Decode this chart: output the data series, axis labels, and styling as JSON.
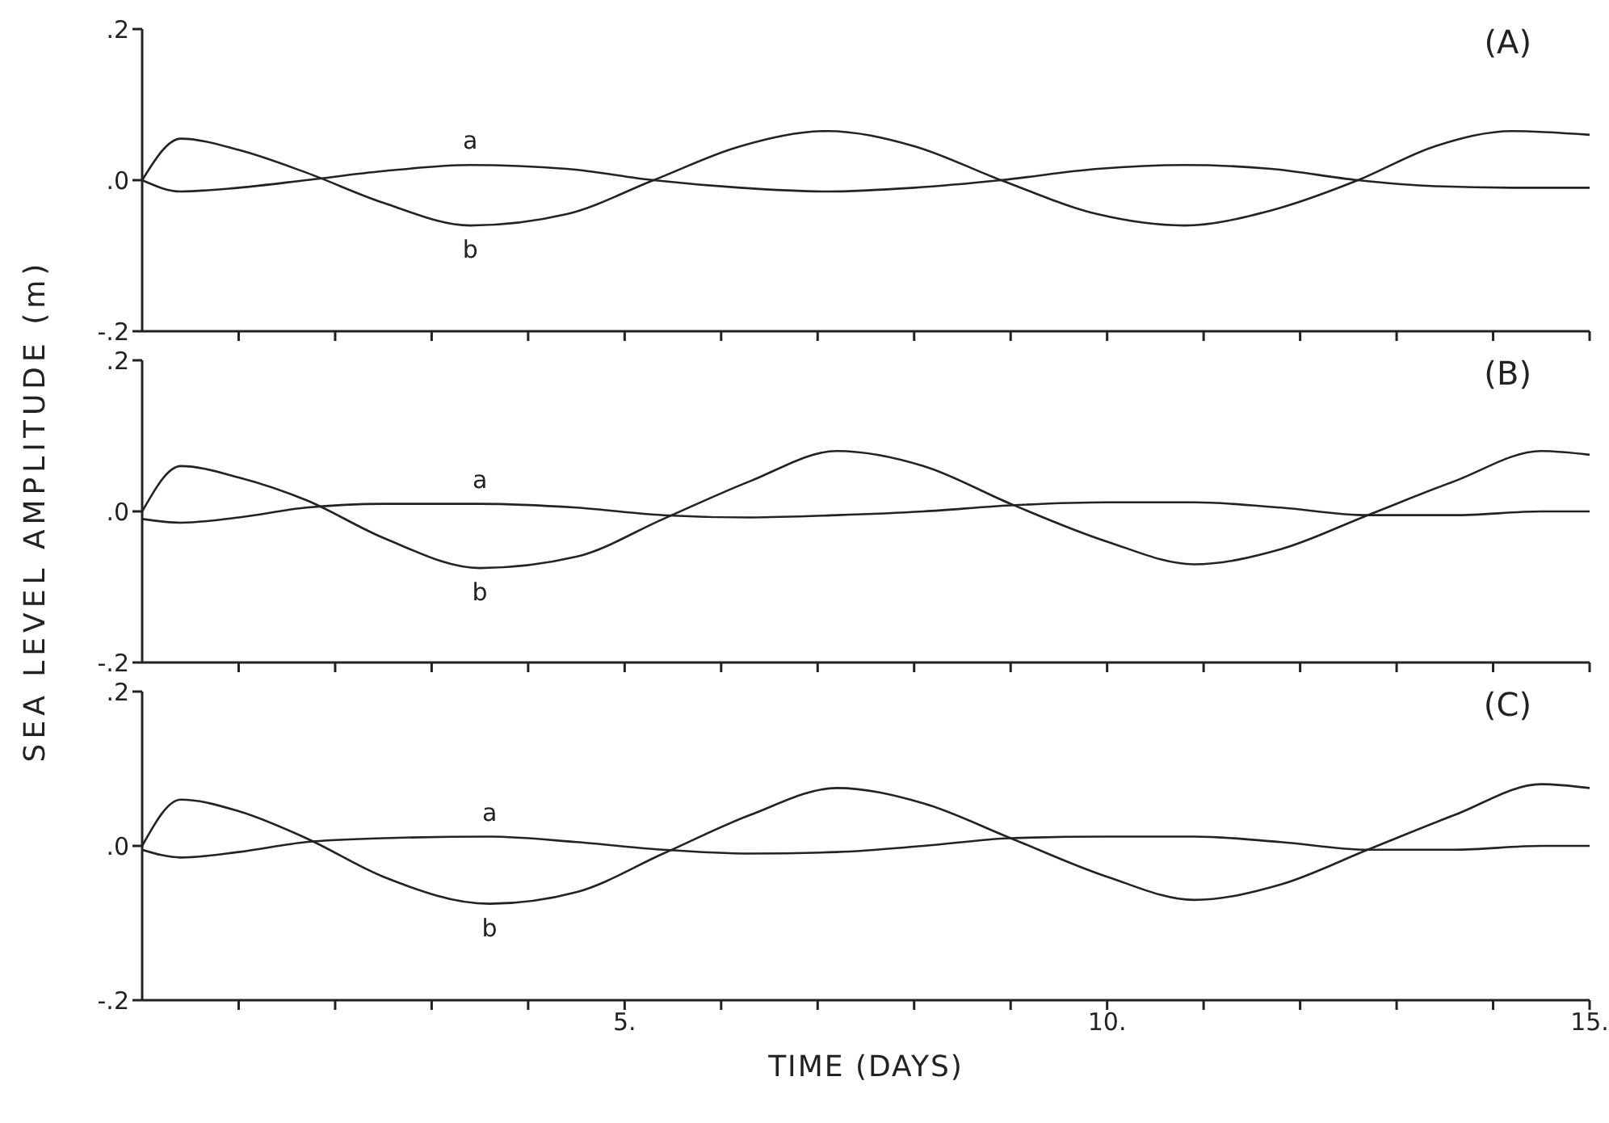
{
  "chart_data": [
    {
      "type": "line",
      "title": "(A)",
      "marker": "none",
      "tick_labels": "y",
      "xticks": [
        {
          "value": 1,
          "label": null
        },
        {
          "value": 2,
          "label": null
        },
        {
          "value": 3,
          "label": null
        },
        {
          "value": 4,
          "label": null
        },
        {
          "value": 5,
          "label": null
        },
        {
          "value": 6,
          "label": null
        },
        {
          "value": 7,
          "label": null
        },
        {
          "value": 8,
          "label": null
        },
        {
          "value": 9,
          "label": null
        },
        {
          "value": 10,
          "label": null
        },
        {
          "value": 11,
          "label": null
        },
        {
          "value": 12,
          "label": null
        },
        {
          "value": 13,
          "label": null
        },
        {
          "value": 14,
          "label": null
        },
        {
          "value": 15,
          "label": null
        }
      ],
      "x": [
        0,
        0.4,
        1,
        1.7,
        2.5,
        3.4,
        4.4,
        5.3,
        6.2,
        7.1,
        8,
        8.9,
        9.9,
        10.8,
        11.7,
        12.6,
        13.4,
        14.2,
        15
      ],
      "series": [
        {
          "name": "a",
          "color": "#222222",
          "values": [
            0,
            -0.015,
            -0.01,
            0,
            0.012,
            0.02,
            0.015,
            0,
            -0.01,
            -0.015,
            -0.01,
            0,
            0.015,
            0.02,
            0.015,
            0,
            -0.008,
            -0.01,
            -0.01
          ]
        },
        {
          "name": "b",
          "color": "#222222",
          "values": [
            0,
            0.055,
            0.04,
            0.01,
            -0.03,
            -0.06,
            -0.045,
            0,
            0.045,
            0.065,
            0.045,
            0,
            -0.045,
            -0.06,
            -0.04,
            0,
            0.045,
            0.065,
            0.06
          ]
        }
      ],
      "xlim": [
        0,
        15
      ],
      "ylim": [
        -0.2,
        0.2
      ],
      "yticks": [
        {
          "value": -0.2,
          "label": "-.2"
        },
        {
          "value": 0,
          "label": ".0"
        },
        {
          "value": 0.2,
          "label": ".2"
        }
      ]
    },
    {
      "type": "line",
      "title": "(B)",
      "ylabel": "SEA LEVEL AMPLITUDE (m)",
      "marker": "none",
      "tick_labels": "y",
      "xticks": [
        {
          "value": 1,
          "label": null
        },
        {
          "value": 2,
          "label": null
        },
        {
          "value": 3,
          "label": null
        },
        {
          "value": 4,
          "label": null
        },
        {
          "value": 5,
          "label": null
        },
        {
          "value": 6,
          "label": null
        },
        {
          "value": 7,
          "label": null
        },
        {
          "value": 8,
          "label": null
        },
        {
          "value": 9,
          "label": null
        },
        {
          "value": 10,
          "label": null
        },
        {
          "value": 11,
          "label": null
        },
        {
          "value": 12,
          "label": null
        },
        {
          "value": 13,
          "label": null
        },
        {
          "value": 14,
          "label": null
        },
        {
          "value": 15,
          "label": null
        }
      ],
      "x": [
        0,
        0.4,
        1,
        1.7,
        2.5,
        3.5,
        4.5,
        5.4,
        6.3,
        7.2,
        8.1,
        9,
        10,
        10.9,
        11.8,
        12.7,
        13.6,
        14.5,
        15
      ],
      "series": [
        {
          "name": "a",
          "color": "#222222",
          "values": [
            -0.01,
            -0.015,
            -0.008,
            0.005,
            0.01,
            0.01,
            0.005,
            -0.005,
            -0.008,
            -0.005,
            0,
            0.008,
            0.012,
            0.012,
            0.005,
            -0.005,
            -0.005,
            0,
            0
          ]
        },
        {
          "name": "b",
          "color": "#222222",
          "values": [
            0,
            0.06,
            0.045,
            0.015,
            -0.035,
            -0.075,
            -0.06,
            -0.01,
            0.04,
            0.08,
            0.06,
            0.01,
            -0.04,
            -0.07,
            -0.05,
            -0.005,
            0.04,
            0.08,
            0.075
          ]
        }
      ],
      "xlim": [
        0,
        15
      ],
      "ylim": [
        -0.2,
        0.2
      ],
      "yticks": [
        {
          "value": -0.2,
          "label": "-.2"
        },
        {
          "value": 0,
          "label": ".0"
        },
        {
          "value": 0.2,
          "label": ".2"
        }
      ]
    },
    {
      "type": "line",
      "title": "(C)",
      "xlabel": "TIME (DAYS)",
      "marker": "none",
      "x": [
        0,
        0.4,
        1,
        1.7,
        2.5,
        3.6,
        4.5,
        5.4,
        6.3,
        7.2,
        8.1,
        9,
        10,
        10.9,
        11.8,
        12.7,
        13.6,
        14.5,
        15
      ],
      "series": [
        {
          "name": "a",
          "color": "#222222",
          "values": [
            -0.005,
            -0.015,
            -0.008,
            0.005,
            0.01,
            0.012,
            0.005,
            -0.005,
            -0.01,
            -0.008,
            0,
            0.01,
            0.012,
            0.012,
            0.005,
            -0.005,
            -0.005,
            0,
            0
          ]
        },
        {
          "name": "b",
          "color": "#222222",
          "values": [
            0,
            0.06,
            0.045,
            0.01,
            -0.04,
            -0.075,
            -0.06,
            -0.01,
            0.04,
            0.075,
            0.055,
            0.01,
            -0.04,
            -0.07,
            -0.05,
            -0.005,
            0.04,
            0.08,
            0.075
          ]
        }
      ],
      "xlim": [
        0,
        15
      ],
      "xticks": [
        {
          "value": 1,
          "label": null
        },
        {
          "value": 2,
          "label": null
        },
        {
          "value": 3,
          "label": null
        },
        {
          "value": 4,
          "label": null
        },
        {
          "value": 5,
          "label": "5."
        },
        {
          "value": 6,
          "label": null
        },
        {
          "value": 7,
          "label": null
        },
        {
          "value": 8,
          "label": null
        },
        {
          "value": 9,
          "label": null
        },
        {
          "value": 10,
          "label": "10."
        },
        {
          "value": 11,
          "label": null
        },
        {
          "value": 12,
          "label": null
        },
        {
          "value": 13,
          "label": null
        },
        {
          "value": 14,
          "label": null
        },
        {
          "value": 15,
          "label": "15."
        }
      ],
      "ylim": [
        -0.2,
        0.2
      ],
      "yticks": [
        {
          "value": -0.2,
          "label": "-.2"
        },
        {
          "value": 0,
          "label": ".0"
        },
        {
          "value": 0.2,
          "label": ".2"
        }
      ]
    }
  ]
}
